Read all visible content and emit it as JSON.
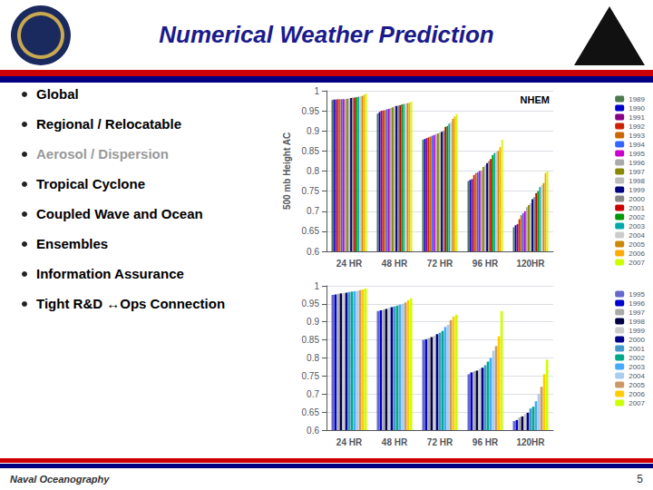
{
  "title": "Numerical Weather Prediction",
  "annotations": [
    {
      "text": "Global",
      "color": "#000000"
    },
    {
      "text": "Regional / Relocatable",
      "color": "#000000"
    },
    {
      "text": "Aerosol / Dispersion",
      "color": "#999999"
    },
    {
      "text": "Tropical Cyclone",
      "color": "#000000"
    },
    {
      "text": "Coupled Wave and Ocean",
      "color": "#000000"
    },
    {
      "text": "Ensembles",
      "color": "#000000"
    },
    {
      "text": "Information Assurance",
      "color": "#000000"
    },
    {
      "text": "Tight R&D ↔Ops Connection",
      "color": "#000000"
    }
  ],
  "footer": {
    "text": "Naval Oceanography",
    "page": "5"
  },
  "chart_data": [
    {
      "type": "bar",
      "ylabel": "500 mb Height AC",
      "annotations": [
        "NHEM"
      ],
      "categories": [
        "24 HR",
        "48 HR",
        "72 HR",
        "96 HR",
        "120HR"
      ],
      "series": [
        {
          "name": "1989",
          "color": "#4d7a4d",
          "values": [
            0.977,
            0.943,
            0.878,
            0.775,
            0.66
          ]
        },
        {
          "name": "1990",
          "color": "#0000cc",
          "values": [
            0.978,
            0.947,
            0.88,
            0.778,
            0.665
          ]
        },
        {
          "name": "1991",
          "color": "#880088",
          "values": [
            0.978,
            0.95,
            0.882,
            0.78,
            0.668
          ]
        },
        {
          "name": "1992",
          "color": "#cc2200",
          "values": [
            0.979,
            0.951,
            0.884,
            0.79,
            0.68
          ]
        },
        {
          "name": "1993",
          "color": "#cc6600",
          "values": [
            0.979,
            0.952,
            0.886,
            0.795,
            0.69
          ]
        },
        {
          "name": "1994",
          "color": "#3366ff",
          "values": [
            0.979,
            0.954,
            0.888,
            0.797,
            0.695
          ]
        },
        {
          "name": "1995",
          "color": "#cc00cc",
          "values": [
            0.979,
            0.955,
            0.89,
            0.8,
            0.7
          ]
        },
        {
          "name": "1996",
          "color": "#aaaaaa",
          "values": [
            0.979,
            0.957,
            0.892,
            0.802,
            0.71
          ]
        },
        {
          "name": "1997",
          "color": "#888800",
          "values": [
            0.98,
            0.959,
            0.894,
            0.81,
            0.715
          ]
        },
        {
          "name": "1998",
          "color": "#bbbbbb",
          "values": [
            0.981,
            0.961,
            0.896,
            0.815,
            0.72
          ]
        },
        {
          "name": "1999",
          "color": "#000080",
          "values": [
            0.982,
            0.962,
            0.898,
            0.82,
            0.73
          ]
        },
        {
          "name": "2000",
          "color": "#888888",
          "values": [
            0.983,
            0.963,
            0.9,
            0.825,
            0.735
          ]
        },
        {
          "name": "2001",
          "color": "#cc0000",
          "values": [
            0.983,
            0.964,
            0.91,
            0.83,
            0.745
          ]
        },
        {
          "name": "2002",
          "color": "#009900",
          "values": [
            0.984,
            0.966,
            0.912,
            0.84,
            0.75
          ]
        },
        {
          "name": "2003",
          "color": "#00aaaa",
          "values": [
            0.985,
            0.967,
            0.918,
            0.845,
            0.76
          ]
        },
        {
          "name": "2004",
          "color": "#cccccc",
          "values": [
            0.986,
            0.968,
            0.922,
            0.848,
            0.765
          ]
        },
        {
          "name": "2005",
          "color": "#cc8800",
          "values": [
            0.987,
            0.969,
            0.93,
            0.85,
            0.77
          ]
        },
        {
          "name": "2006",
          "color": "#ffaa00",
          "values": [
            0.99,
            0.97,
            0.936,
            0.86,
            0.795
          ]
        },
        {
          "name": "2007",
          "color": "#ccff00",
          "values": [
            0.993,
            0.973,
            0.942,
            0.878,
            0.8
          ]
        }
      ],
      "ylim": [
        0.6,
        1.0
      ],
      "yticks": [
        0.6,
        0.65,
        0.7,
        0.75,
        0.8,
        0.85,
        0.9,
        0.95,
        1
      ],
      "grid": true,
      "legend": "right"
    },
    {
      "type": "bar",
      "categories": [
        "24 HR",
        "48 HR",
        "72 HR",
        "96 HR",
        "120HR"
      ],
      "series": [
        {
          "name": "1995",
          "color": "#6666cc",
          "values": [
            0.975,
            0.93,
            0.85,
            0.755,
            0.625
          ]
        },
        {
          "name": "1996",
          "color": "#0000cc",
          "values": [
            0.976,
            0.932,
            0.852,
            0.76,
            0.628
          ]
        },
        {
          "name": "1997",
          "color": "#aaaaaa",
          "values": [
            0.978,
            0.934,
            0.855,
            0.763,
            0.635
          ]
        },
        {
          "name": "1998",
          "color": "#000044",
          "values": [
            0.979,
            0.936,
            0.858,
            0.765,
            0.638
          ]
        },
        {
          "name": "1999",
          "color": "#cccccc",
          "values": [
            0.98,
            0.939,
            0.862,
            0.77,
            0.645
          ]
        },
        {
          "name": "2000",
          "color": "#000088",
          "values": [
            0.981,
            0.941,
            0.866,
            0.773,
            0.648
          ]
        },
        {
          "name": "2001",
          "color": "#4499cc",
          "values": [
            0.983,
            0.943,
            0.87,
            0.78,
            0.66
          ]
        },
        {
          "name": "2002",
          "color": "#00aa88",
          "values": [
            0.984,
            0.945,
            0.875,
            0.79,
            0.665
          ]
        },
        {
          "name": "2003",
          "color": "#44aaff",
          "values": [
            0.985,
            0.948,
            0.886,
            0.8,
            0.68
          ]
        },
        {
          "name": "2004",
          "color": "#aaccee",
          "values": [
            0.986,
            0.95,
            0.892,
            0.82,
            0.7
          ]
        },
        {
          "name": "2005",
          "color": "#cc9966",
          "values": [
            0.988,
            0.954,
            0.905,
            0.833,
            0.72
          ]
        },
        {
          "name": "2006",
          "color": "#ffcc00",
          "values": [
            0.99,
            0.96,
            0.915,
            0.86,
            0.755
          ]
        },
        {
          "name": "2007",
          "color": "#ccff00",
          "values": [
            0.993,
            0.965,
            0.92,
            0.93,
            0.795
          ]
        }
      ],
      "ylim": [
        0.6,
        1.0
      ],
      "yticks": [
        0.6,
        0.65,
        0.7,
        0.75,
        0.8,
        0.85,
        0.9,
        0.95,
        1
      ],
      "grid": true,
      "legend": "right"
    }
  ]
}
